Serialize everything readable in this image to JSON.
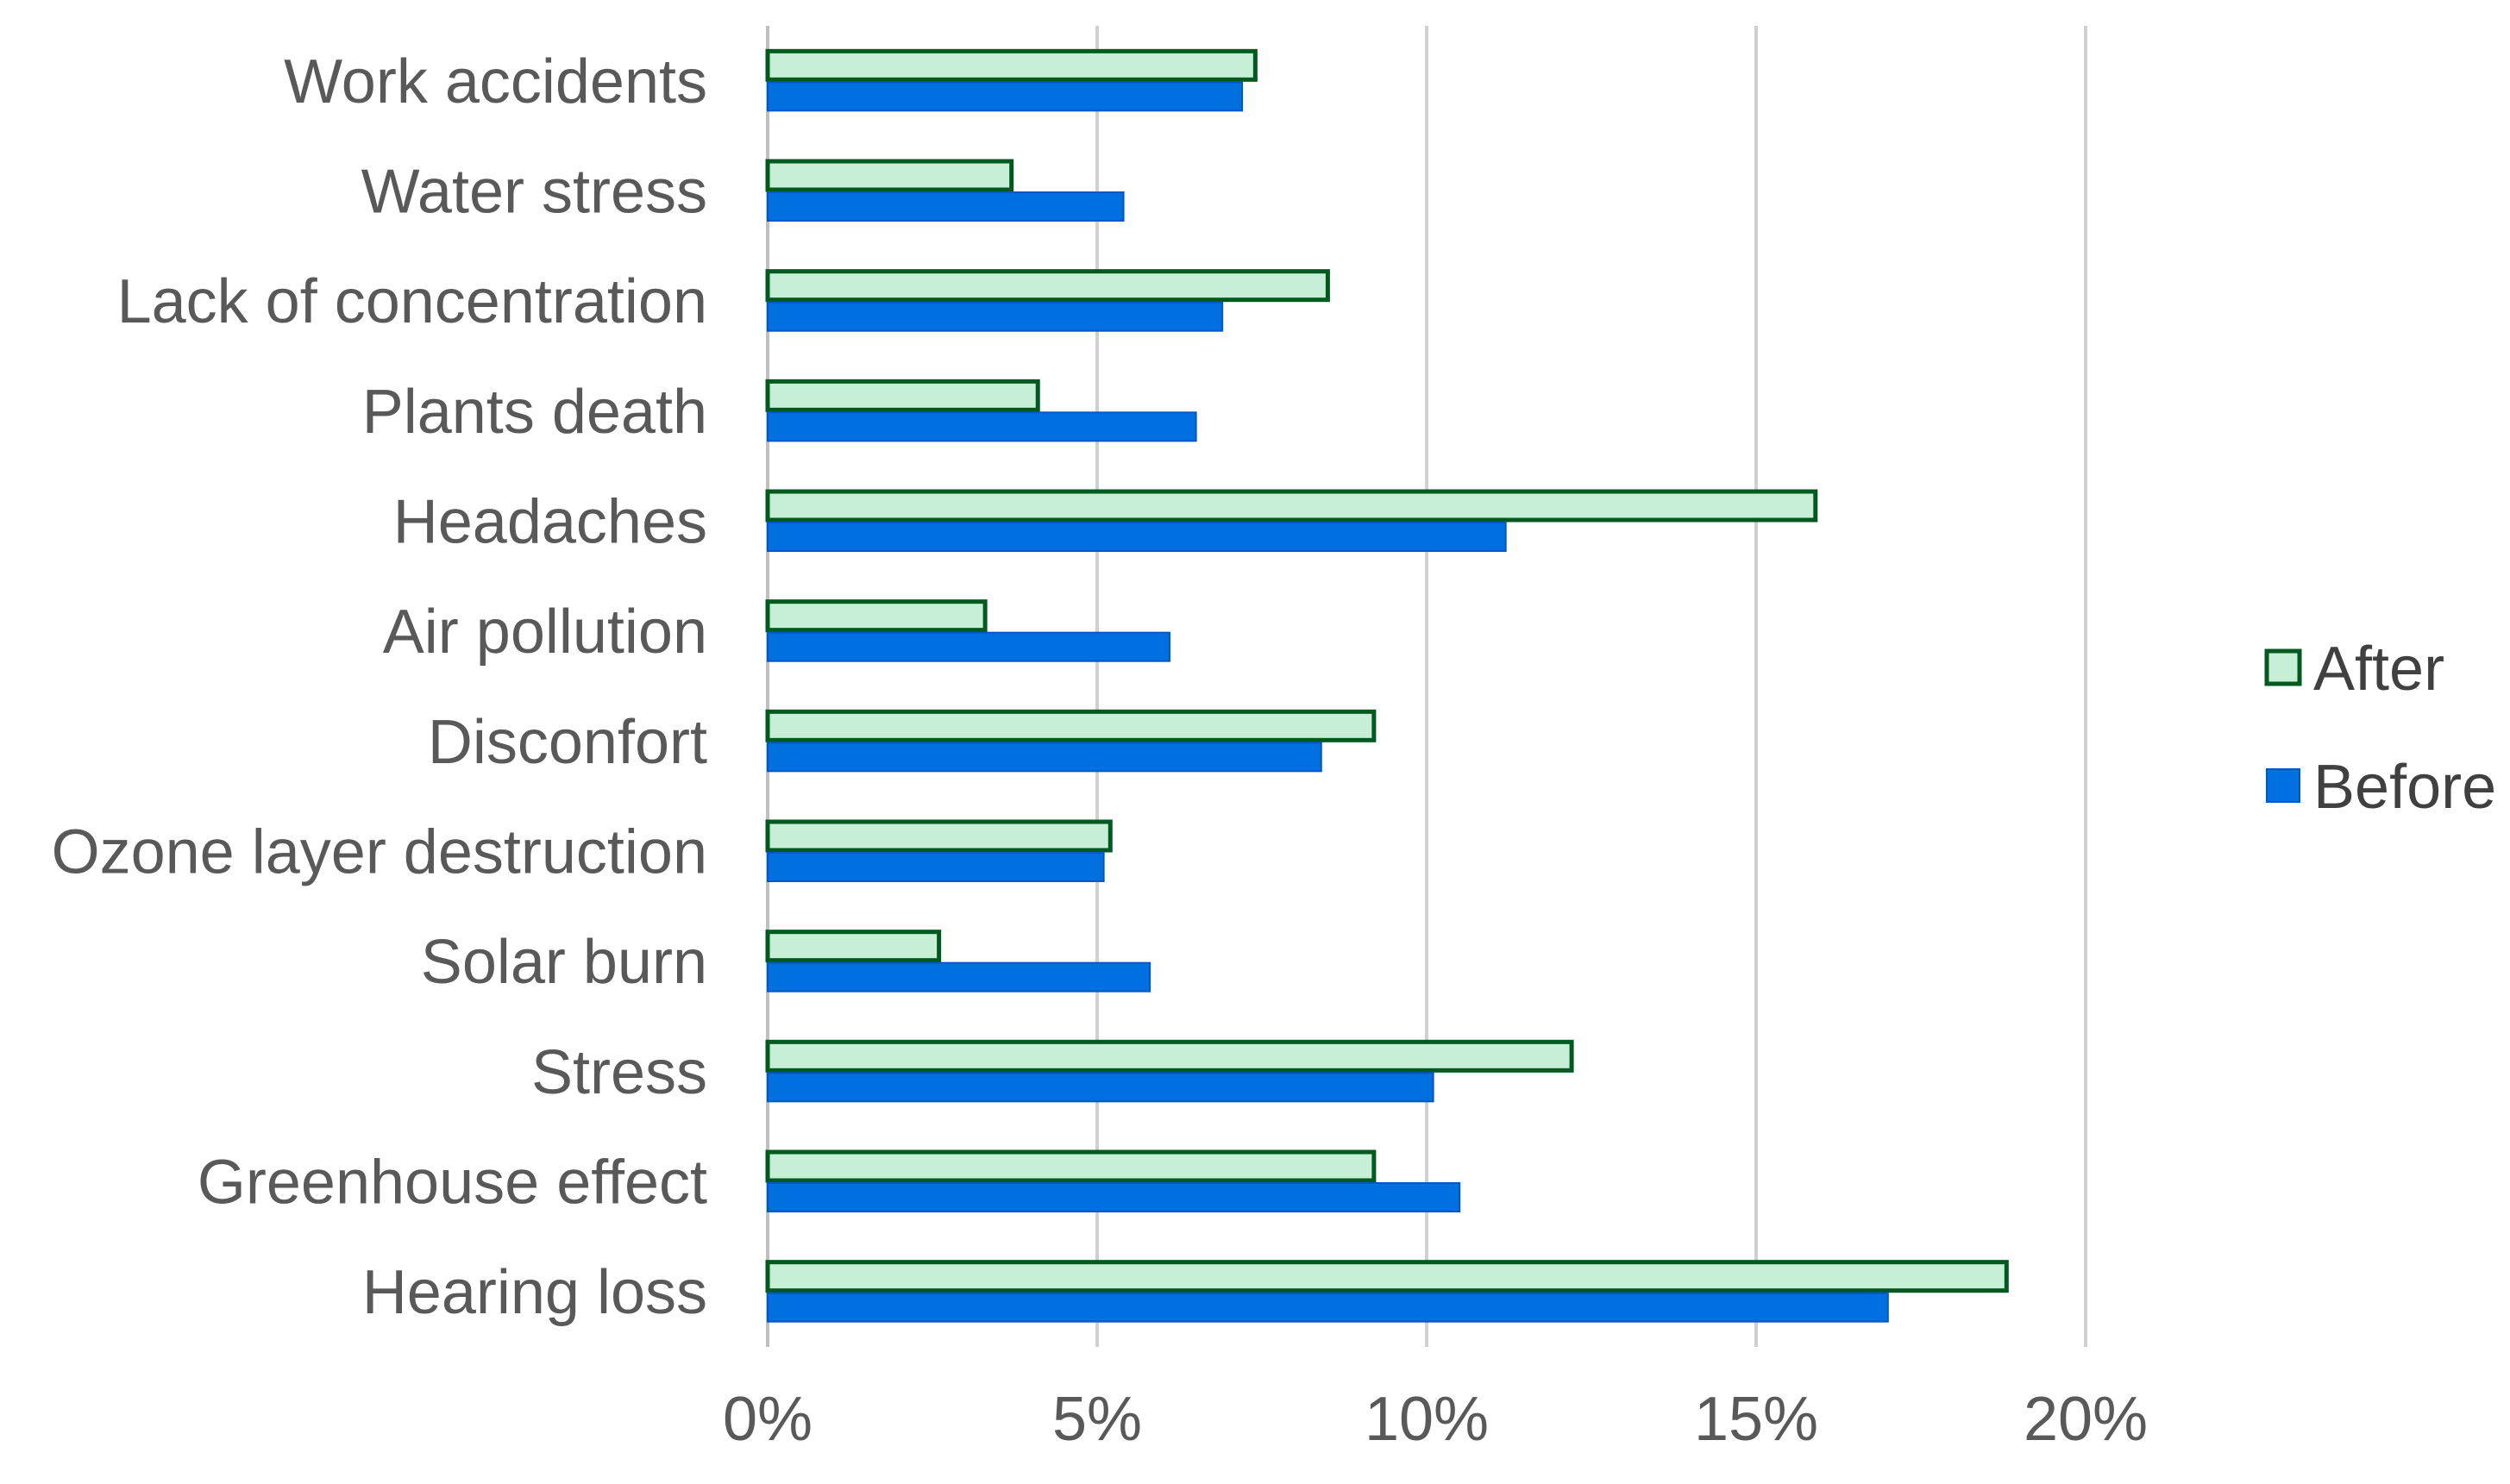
{
  "chart_data": {
    "type": "bar",
    "orientation": "horizontal",
    "title": "",
    "xlabel": "",
    "ylabel": "",
    "xlim": [
      0,
      20
    ],
    "x_ticks": [
      0,
      5,
      10,
      15,
      20
    ],
    "x_tick_labels": [
      "0%",
      "5%",
      "10%",
      "15%",
      "20%"
    ],
    "grid": true,
    "legend_position": "right",
    "categories": [
      "Work accidents",
      "Water stress",
      "Lack of concentration",
      "Plants death",
      "Headaches",
      "Air pollution",
      "Disconfort",
      "Ozone layer destruction",
      "Solar burn",
      "Stress",
      "Greenhouse effect",
      "Hearing loss"
    ],
    "series": [
      {
        "name": "After",
        "fill": "#c6efd5",
        "stroke": "#00591f",
        "values": [
          7.4,
          3.7,
          8.5,
          4.1,
          15.9,
          3.3,
          9.2,
          5.2,
          2.6,
          12.2,
          9.2,
          18.8
        ]
      },
      {
        "name": "Before",
        "fill": "#0070e0",
        "stroke": "#0057c8",
        "values": [
          7.2,
          5.4,
          6.9,
          6.5,
          11.2,
          6.1,
          8.4,
          5.1,
          5.8,
          10.1,
          10.5,
          17.0
        ]
      }
    ]
  }
}
